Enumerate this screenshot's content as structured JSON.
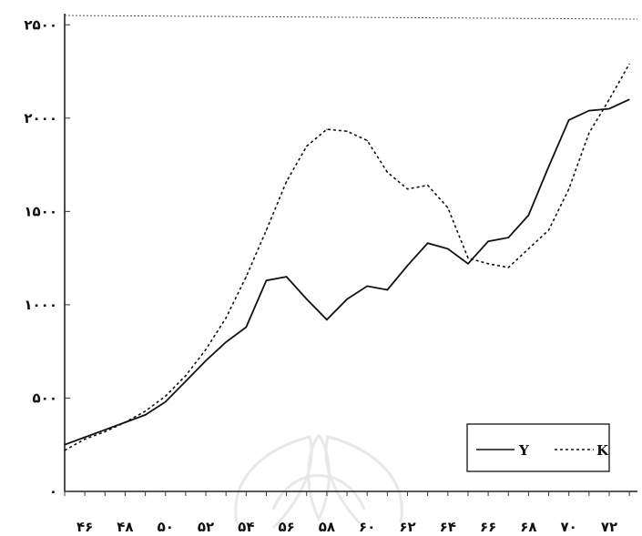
{
  "chart_data": {
    "type": "line",
    "title": "",
    "xlabel": "",
    "ylabel": "",
    "x": [
      45,
      46,
      47,
      48,
      49,
      50,
      51,
      52,
      53,
      54,
      55,
      56,
      57,
      58,
      59,
      60,
      61,
      62,
      63,
      64,
      65,
      66,
      67,
      68,
      69,
      70,
      71,
      72,
      73
    ],
    "x_tick_values": [
      46,
      48,
      50,
      52,
      54,
      56,
      58,
      60,
      62,
      64,
      66,
      68,
      70,
      72
    ],
    "x_tick_labels": [
      "۴۶",
      "۴۸",
      "۵۰",
      "۵۲",
      "۵۴",
      "۵۶",
      "۵۸",
      "۶۰",
      "۶۲",
      "۶۴",
      "۶۶",
      "۶۸",
      "۷۰",
      "۷۲"
    ],
    "y_tick_values": [
      0,
      500,
      1000,
      1500,
      2000,
      2500
    ],
    "y_tick_labels": [
      "۰",
      "۵۰۰",
      "۱۰۰۰",
      "۱۵۰۰",
      "۲۰۰۰",
      "۲۵۰۰"
    ],
    "xlim": [
      45,
      73.4
    ],
    "ylim": [
      0,
      2550
    ],
    "grid": false,
    "legend_position": "bottom-right",
    "series": [
      {
        "name": "Y",
        "style": "solid",
        "color": "#111111",
        "values": [
          250,
          290,
          330,
          370,
          410,
          480,
          590,
          700,
          800,
          880,
          1130,
          1150,
          1030,
          920,
          1030,
          1100,
          1080,
          1210,
          1330,
          1300,
          1220,
          1340,
          1360,
          1480,
          1740,
          1990,
          2040,
          2050,
          2100
        ]
      },
      {
        "name": "K",
        "style": "dashed",
        "color": "#111111",
        "values": [
          220,
          280,
          320,
          370,
          430,
          510,
          620,
          760,
          930,
          1150,
          1400,
          1660,
          1850,
          1940,
          1930,
          1880,
          1710,
          1620,
          1640,
          1520,
          1250,
          1220,
          1200,
          1300,
          1400,
          1620,
          1920,
          2100,
          2290
        ]
      }
    ]
  }
}
